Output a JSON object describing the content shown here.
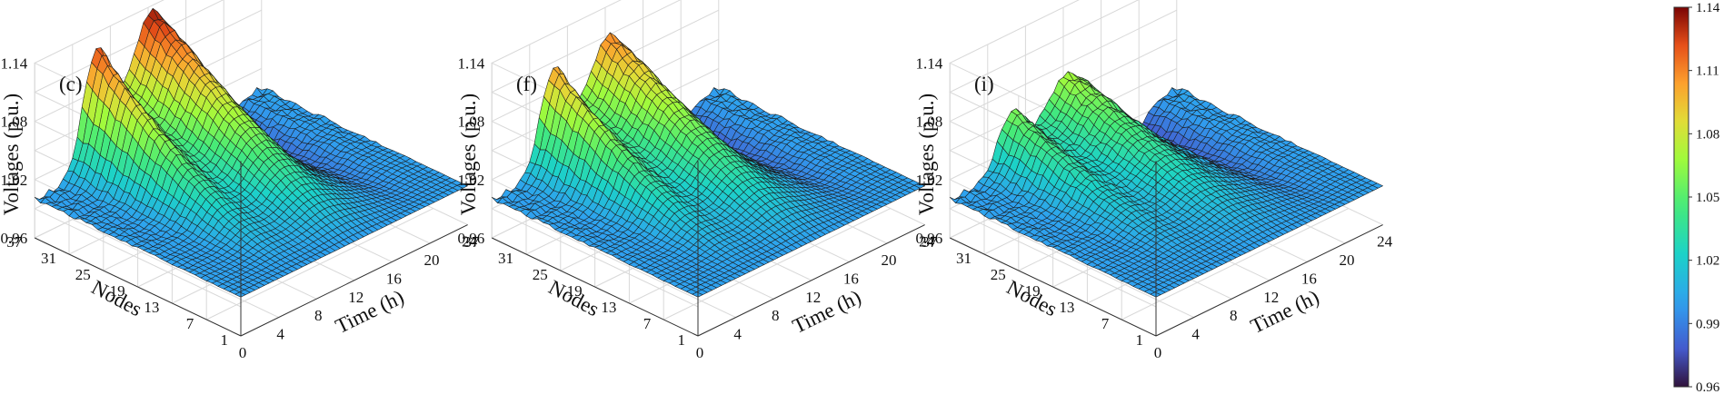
{
  "chart_data": {
    "type": "surface3d",
    "description_units": "Voltage magnitude in p.u. over time (h) and network nodes",
    "panels": [
      {
        "id": "(c)",
        "zlabel": "Voltages (p.u.)",
        "xlabel": "Time (h)",
        "ylabel": "Nodes",
        "zticks": [
          "0.96",
          "1.02",
          "1.08",
          "1.14"
        ],
        "xticks": [
          "0",
          "4",
          "8",
          "12",
          "16",
          "20",
          "24"
        ],
        "yticks": [
          "1",
          "7",
          "13",
          "19",
          "25",
          "31",
          "37"
        ],
        "zlim": [
          0.96,
          1.14
        ],
        "peak_day": 1.135,
        "peak_second": 1.125,
        "trough": 0.975,
        "flat_floor": 1.0
      },
      {
        "id": "(f)",
        "zlabel": "Voltages (p.u.)",
        "xlabel": "Time (h)",
        "ylabel": "Nodes",
        "zticks": [
          "0.96",
          "1.02",
          "1.08",
          "1.14"
        ],
        "xticks": [
          "0",
          "4",
          "8",
          "12",
          "16",
          "20",
          "24"
        ],
        "yticks": [
          "1",
          "7",
          "13",
          "19",
          "25",
          "31",
          "37"
        ],
        "zlim": [
          0.96,
          1.14
        ],
        "peak_day": 1.11,
        "peak_second": 1.105,
        "trough": 0.975,
        "flat_floor": 1.0
      },
      {
        "id": "(i)",
        "zlabel": "Voltages (p.u.)",
        "xlabel": "Time (h)",
        "ylabel": "Nodes",
        "zticks": [
          "0.96",
          "1.02",
          "1.08",
          "1.14"
        ],
        "xticks": [
          "0",
          "4",
          "8",
          "12",
          "16",
          "20",
          "24"
        ],
        "yticks": [
          "1",
          "7",
          "13",
          "19",
          "25",
          "31",
          "37"
        ],
        "zlim": [
          0.96,
          1.14
        ],
        "peak_day": 1.07,
        "peak_second": 1.06,
        "trough": 0.975,
        "flat_floor": 1.0
      }
    ],
    "colorbar": {
      "colormap": "turbo-like",
      "ticks": [
        "1.14",
        "1.11",
        "1.08",
        "1.05",
        "1.02",
        "0.99",
        "0.96"
      ],
      "range": [
        0.96,
        1.14
      ]
    }
  }
}
